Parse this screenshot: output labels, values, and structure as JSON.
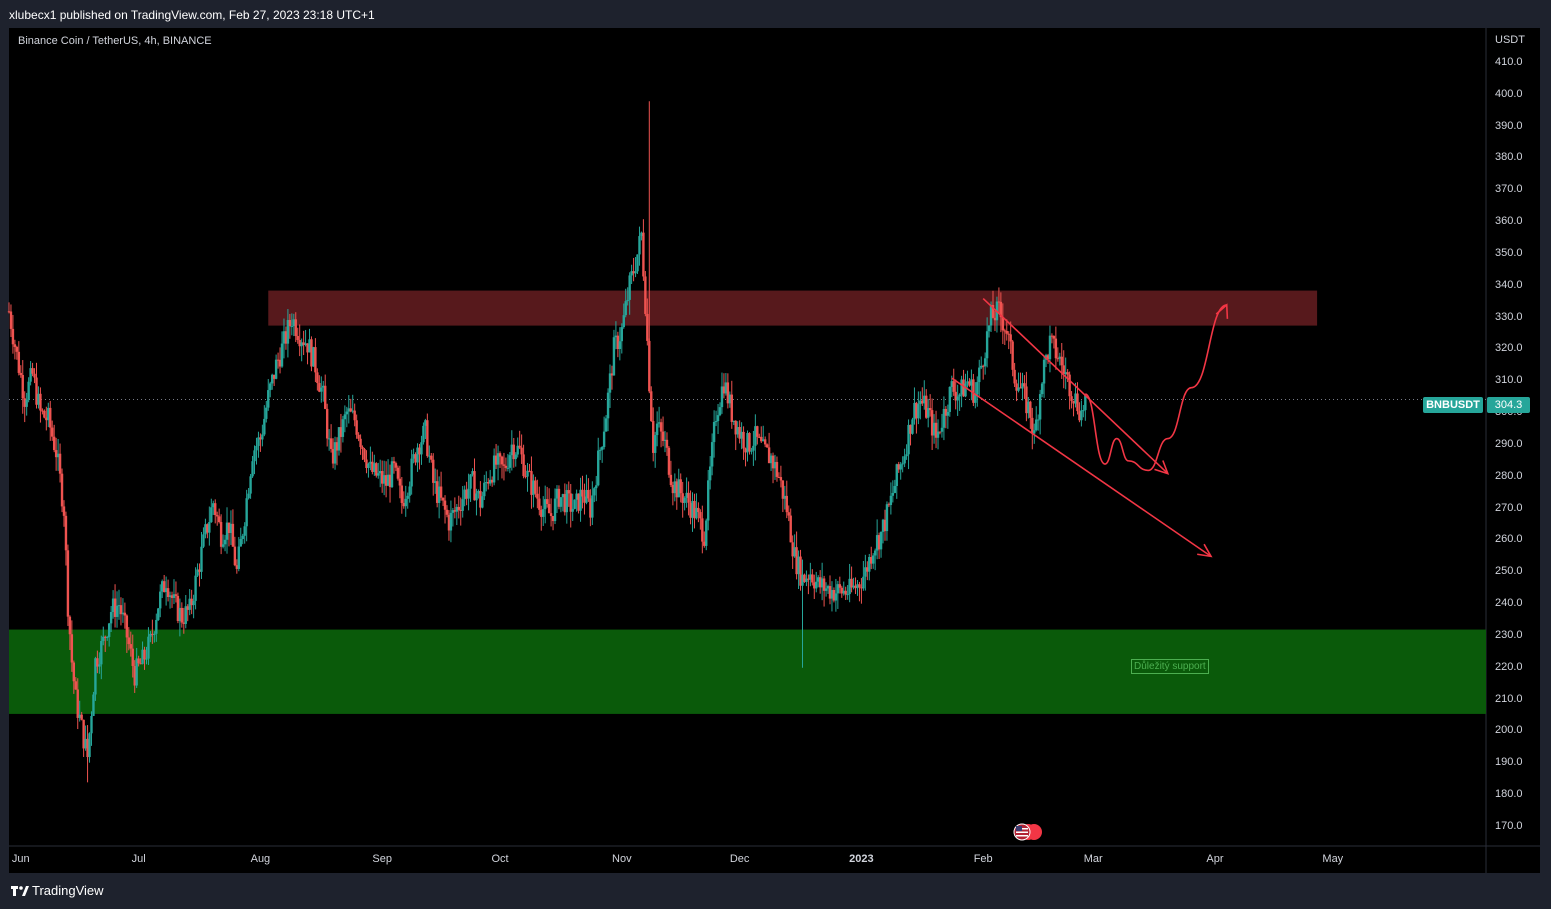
{
  "header": {
    "published": "xlubecx1 published on TradingView.com, Feb 27, 2023 23:18 UTC+1"
  },
  "chart_data": {
    "type": "candlestick",
    "title": "Binance Coin / TetherUS, 4h, BINANCE",
    "y_unit": "USDT",
    "ylim": [
      164,
      421
    ],
    "y_ticks": [
      "410.0",
      "400.0",
      "390.0",
      "380.0",
      "370.0",
      "360.0",
      "350.0",
      "340.0",
      "330.0",
      "320.0",
      "310.0",
      "300.0",
      "290.0",
      "280.0",
      "270.0",
      "260.0",
      "250.0",
      "240.0",
      "230.0",
      "220.0",
      "210.0",
      "200.0",
      "190.0",
      "180.0",
      "170.0"
    ],
    "x_ticks": [
      "Jun",
      "Jul",
      "Aug",
      "Sep",
      "Oct",
      "Nov",
      "Dec",
      "2023",
      "Feb",
      "Mar",
      "Apr",
      "May"
    ],
    "x_range": [
      "2022-05-29",
      "2023-06-09"
    ],
    "x_tick_dates": [
      "2022-06-01",
      "2022-07-01",
      "2022-08-01",
      "2022-09-01",
      "2022-10-01",
      "2022-11-01",
      "2022-12-01",
      "2023-01-01",
      "2023-02-01",
      "2023-03-01",
      "2023-04-01",
      "2023-05-01"
    ],
    "last_price": {
      "symbol": "BNBUSDT",
      "value": "304.3",
      "price": 304.3
    },
    "price_path": [
      [
        "2022-05-29",
        332
      ],
      [
        "2022-05-31",
        318
      ],
      [
        "2022-06-02",
        305
      ],
      [
        "2022-06-04",
        312
      ],
      [
        "2022-06-06",
        300
      ],
      [
        "2022-06-08",
        298
      ],
      [
        "2022-06-10",
        288
      ],
      [
        "2022-06-12",
        270
      ],
      [
        "2022-06-13",
        240
      ],
      [
        "2022-06-14",
        222
      ],
      [
        "2022-06-15",
        210
      ],
      [
        "2022-06-18",
        192
      ],
      [
        "2022-06-20",
        222
      ],
      [
        "2022-06-22",
        228
      ],
      [
        "2022-06-24",
        238
      ],
      [
        "2022-06-26",
        240
      ],
      [
        "2022-06-28",
        230
      ],
      [
        "2022-06-30",
        218
      ],
      [
        "2022-07-02",
        222
      ],
      [
        "2022-07-04",
        228
      ],
      [
        "2022-07-06",
        240
      ],
      [
        "2022-07-08",
        248
      ],
      [
        "2022-07-10",
        240
      ],
      [
        "2022-07-12",
        236
      ],
      [
        "2022-07-14",
        238
      ],
      [
        "2022-07-16",
        250
      ],
      [
        "2022-07-18",
        262
      ],
      [
        "2022-07-20",
        272
      ],
      [
        "2022-07-22",
        262
      ],
      [
        "2022-07-24",
        265
      ],
      [
        "2022-07-26",
        250
      ],
      [
        "2022-07-28",
        268
      ],
      [
        "2022-07-30",
        288
      ],
      [
        "2022-08-01",
        292
      ],
      [
        "2022-08-03",
        305
      ],
      [
        "2022-08-05",
        315
      ],
      [
        "2022-08-07",
        322
      ],
      [
        "2022-08-09",
        330
      ],
      [
        "2022-08-11",
        325
      ],
      [
        "2022-08-13",
        322
      ],
      [
        "2022-08-15",
        315
      ],
      [
        "2022-08-17",
        305
      ],
      [
        "2022-08-19",
        285
      ],
      [
        "2022-08-21",
        292
      ],
      [
        "2022-08-23",
        300
      ],
      [
        "2022-08-25",
        298
      ],
      [
        "2022-08-27",
        290
      ],
      [
        "2022-08-29",
        282
      ],
      [
        "2022-08-31",
        280
      ],
      [
        "2022-09-02",
        278
      ],
      [
        "2022-09-04",
        282
      ],
      [
        "2022-09-06",
        272
      ],
      [
        "2022-09-08",
        280
      ],
      [
        "2022-09-10",
        290
      ],
      [
        "2022-09-12",
        294
      ],
      [
        "2022-09-14",
        278
      ],
      [
        "2022-09-16",
        272
      ],
      [
        "2022-09-18",
        266
      ],
      [
        "2022-09-20",
        270
      ],
      [
        "2022-09-22",
        275
      ],
      [
        "2022-09-24",
        278
      ],
      [
        "2022-09-26",
        272
      ],
      [
        "2022-09-28",
        280
      ],
      [
        "2022-09-30",
        284
      ],
      [
        "2022-10-02",
        282
      ],
      [
        "2022-10-04",
        290
      ],
      [
        "2022-10-06",
        288
      ],
      [
        "2022-10-08",
        280
      ],
      [
        "2022-10-10",
        275
      ],
      [
        "2022-10-12",
        270
      ],
      [
        "2022-10-14",
        268
      ],
      [
        "2022-10-16",
        274
      ],
      [
        "2022-10-18",
        272
      ],
      [
        "2022-10-20",
        270
      ],
      [
        "2022-10-22",
        275
      ],
      [
        "2022-10-24",
        270
      ],
      [
        "2022-10-26",
        285
      ],
      [
        "2022-10-28",
        300
      ],
      [
        "2022-10-30",
        320
      ],
      [
        "2022-11-01",
        326
      ],
      [
        "2022-11-03",
        340
      ],
      [
        "2022-11-05",
        350
      ],
      [
        "2022-11-06",
        356
      ],
      [
        "2022-11-07",
        335
      ],
      [
        "2022-11-08",
        310
      ],
      [
        "2022-11-09",
        290
      ],
      [
        "2022-11-10",
        296
      ],
      [
        "2022-11-12",
        290
      ],
      [
        "2022-11-14",
        278
      ],
      [
        "2022-11-16",
        275
      ],
      [
        "2022-11-18",
        272
      ],
      [
        "2022-11-20",
        268
      ],
      [
        "2022-11-22",
        262
      ],
      [
        "2022-11-23",
        275
      ],
      [
        "2022-11-25",
        300
      ],
      [
        "2022-11-27",
        310
      ],
      [
        "2022-11-29",
        300
      ],
      [
        "2022-12-01",
        294
      ],
      [
        "2022-12-03",
        290
      ],
      [
        "2022-12-05",
        292
      ],
      [
        "2022-12-07",
        288
      ],
      [
        "2022-12-09",
        286
      ],
      [
        "2022-12-11",
        280
      ],
      [
        "2022-12-13",
        270
      ],
      [
        "2022-12-15",
        255
      ],
      [
        "2022-12-17",
        248
      ],
      [
        "2022-12-19",
        250
      ],
      [
        "2022-12-21",
        246
      ],
      [
        "2022-12-23",
        245
      ],
      [
        "2022-12-25",
        244
      ],
      [
        "2022-12-27",
        244
      ],
      [
        "2022-12-29",
        244
      ],
      [
        "2022-12-31",
        246
      ],
      [
        "2023-01-02",
        250
      ],
      [
        "2023-01-04",
        258
      ],
      [
        "2023-01-06",
        262
      ],
      [
        "2023-01-08",
        270
      ],
      [
        "2023-01-10",
        280
      ],
      [
        "2023-01-12",
        288
      ],
      [
        "2023-01-14",
        300
      ],
      [
        "2023-01-16",
        304
      ],
      [
        "2023-01-18",
        300
      ],
      [
        "2023-01-20",
        292
      ],
      [
        "2023-01-22",
        300
      ],
      [
        "2023-01-24",
        308
      ],
      [
        "2023-01-26",
        306
      ],
      [
        "2023-01-28",
        310
      ],
      [
        "2023-01-30",
        306
      ],
      [
        "2023-02-01",
        318
      ],
      [
        "2023-02-03",
        330
      ],
      [
        "2023-02-05",
        332
      ],
      [
        "2023-02-07",
        326
      ],
      [
        "2023-02-09",
        312
      ],
      [
        "2023-02-11",
        306
      ],
      [
        "2023-02-13",
        300
      ],
      [
        "2023-02-14",
        292
      ],
      [
        "2023-02-16",
        312
      ],
      [
        "2023-02-18",
        322
      ],
      [
        "2023-02-20",
        318
      ],
      [
        "2023-02-22",
        312
      ],
      [
        "2023-02-24",
        306
      ],
      [
        "2023-02-26",
        300
      ],
      [
        "2023-02-27",
        304.3
      ]
    ],
    "annotations": {
      "resistance_zone": {
        "price_from": 327.5,
        "price_to": 338.5,
        "from": "2022-08-03",
        "to": "2023-04-27",
        "color": "#5c1a1e"
      },
      "support_zone": {
        "price_from": 205.5,
        "price_to": 232,
        "color": "#0a5a0a",
        "label": "Důležitý support"
      },
      "channel_upper": [
        [
          "2023-02-01",
          336
        ],
        [
          "2023-03-20",
          281
        ]
      ],
      "channel_lower": [
        [
          "2023-01-24",
          311
        ],
        [
          "2023-03-31",
          255
        ]
      ],
      "projection": [
        [
          "2023-02-27",
          306
        ],
        [
          "2023-03-04",
          284
        ],
        [
          "2023-03-07",
          292
        ],
        [
          "2023-03-10",
          285
        ],
        [
          "2023-03-15",
          282
        ],
        [
          "2023-03-20",
          292
        ],
        [
          "2023-03-26",
          308
        ],
        [
          "2023-04-04",
          334
        ]
      ]
    }
  },
  "colors": {
    "up": "#26a69a",
    "down": "#ef5350",
    "projection": "#f23645",
    "background": "#000000",
    "chrome": "#1e222d",
    "price_tag": "#26a69a"
  },
  "footer": {
    "brand": "TradingView",
    "logo_icon": "tradingview-logo-icon"
  },
  "misc": {
    "flag_icon": "us-flag-event-icon"
  }
}
